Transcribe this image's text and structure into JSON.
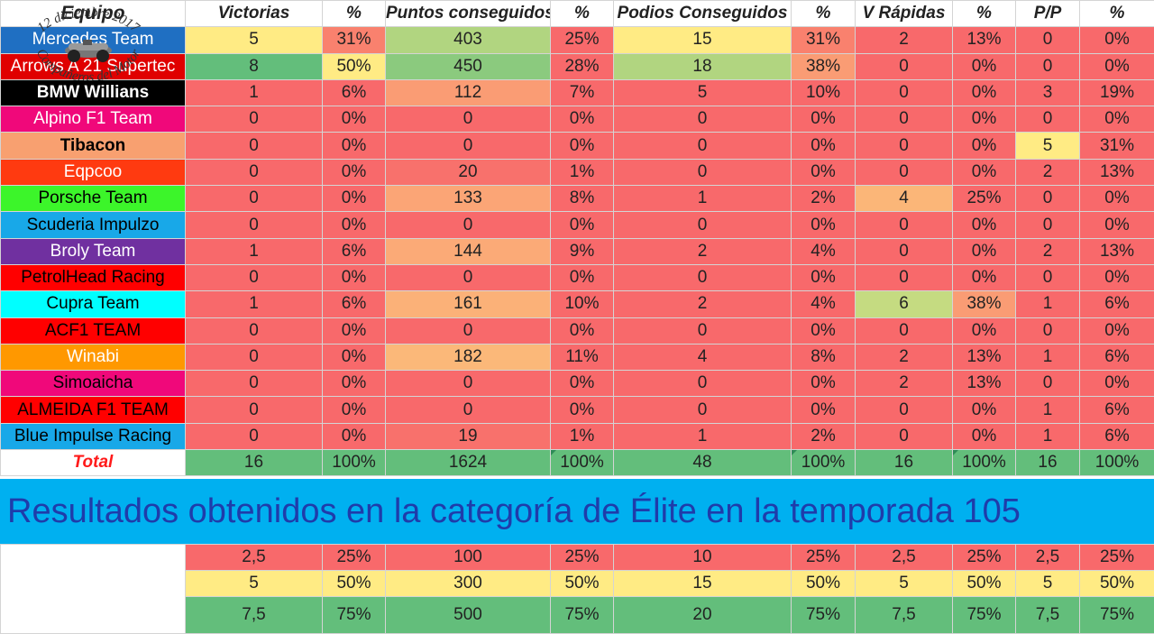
{
  "colors": {
    "red": "#f8696b",
    "yellow": "#ffeb84",
    "green": "#63be7b",
    "white": "#ffffff"
  },
  "headers": {
    "equipo": "Equipo",
    "victorias": "Victorias",
    "pct1": "%",
    "puntos": "Puntos conseguidos",
    "pct2": "%",
    "podios": "Podios Conseguidos",
    "pct3": "%",
    "vrapidas": "V Rápidas",
    "pct4": "%",
    "pp": "P/P",
    "pct5": "%"
  },
  "teams": [
    {
      "name": "Mercedes Team",
      "bg": "#1f6fc2",
      "fg": "#ffffff",
      "bold": false,
      "cells": [
        "5",
        "31%",
        "403",
        "25%",
        "15",
        "31%",
        "2",
        "13%",
        "0",
        "0%"
      ],
      "colors": [
        "#ffeb84",
        "#f9816e",
        "#b1d580",
        "#f8696b",
        "#ffeb84",
        "#f9816e",
        "#f8696b",
        "#f8696b",
        "#f8696b",
        "#f8696b"
      ]
    },
    {
      "name": "Arrows A 21 Supertec",
      "bg": "#e00000",
      "fg": "#ffffff",
      "bold": false,
      "cells": [
        "8",
        "50%",
        "450",
        "28%",
        "18",
        "38%",
        "0",
        "0%",
        "0",
        "0%"
      ],
      "colors": [
        "#63be7b",
        "#ffeb84",
        "#8bca7e",
        "#f8696b",
        "#b1d580",
        "#fa9c74",
        "#f8696b",
        "#f8696b",
        "#f8696b",
        "#f8696b"
      ]
    },
    {
      "name": "BMW Willians",
      "bg": "#000000",
      "fg": "#ffffff",
      "bold": true,
      "cells": [
        "1",
        "6%",
        "112",
        "7%",
        "5",
        "10%",
        "0",
        "0%",
        "3",
        "19%"
      ],
      "colors": [
        "#f8696b",
        "#f8696b",
        "#fa9c74",
        "#f8696b",
        "#f8696b",
        "#f8696b",
        "#f8696b",
        "#f8696b",
        "#f8696b",
        "#f8696b"
      ]
    },
    {
      "name": "Alpino F1 Team",
      "bg": "#f0087a",
      "fg": "#ffffff",
      "bold": false,
      "cells": [
        "0",
        "0%",
        "0",
        "0%",
        "0",
        "0%",
        "0",
        "0%",
        "0",
        "0%"
      ],
      "colors": [
        "#f8696b",
        "#f8696b",
        "#f8696b",
        "#f8696b",
        "#f8696b",
        "#f8696b",
        "#f8696b",
        "#f8696b",
        "#f8696b",
        "#f8696b"
      ]
    },
    {
      "name": "Tibacon",
      "bg": "#f8a070",
      "fg": "#000000",
      "bold": true,
      "cells": [
        "0",
        "0%",
        "0",
        "0%",
        "0",
        "0%",
        "0",
        "0%",
        "5",
        "31%"
      ],
      "colors": [
        "#f8696b",
        "#f8696b",
        "#f8696b",
        "#f8696b",
        "#f8696b",
        "#f8696b",
        "#f8696b",
        "#f8696b",
        "#ffeb84",
        "#f8696b"
      ]
    },
    {
      "name": "Eqpcoo",
      "bg": "#ff3a10",
      "fg": "#ffffff",
      "bold": false,
      "cells": [
        "0",
        "0%",
        "20",
        "1%",
        "0",
        "0%",
        "0",
        "0%",
        "2",
        "13%"
      ],
      "colors": [
        "#f8696b",
        "#f8696b",
        "#f8716c",
        "#f8696b",
        "#f8696b",
        "#f8696b",
        "#f8696b",
        "#f8696b",
        "#f8696b",
        "#f8696b"
      ]
    },
    {
      "name": "Porsche Team",
      "bg": "#3cf52a",
      "fg": "#000000",
      "bold": false,
      "cells": [
        "0",
        "0%",
        "133",
        "8%",
        "1",
        "2%",
        "4",
        "25%",
        "0",
        "0%"
      ],
      "colors": [
        "#f8696b",
        "#f8696b",
        "#fba576",
        "#f8696b",
        "#f8696b",
        "#f8696b",
        "#fbb678",
        "#f8696b",
        "#f8696b",
        "#f8696b"
      ]
    },
    {
      "name": "Scuderia Impulzo",
      "bg": "#18a8e8",
      "fg": "#000000",
      "bold": false,
      "cells": [
        "0",
        "0%",
        "0",
        "0%",
        "0",
        "0%",
        "0",
        "0%",
        "0",
        "0%"
      ],
      "colors": [
        "#f8696b",
        "#f8696b",
        "#f8696b",
        "#f8696b",
        "#f8696b",
        "#f8696b",
        "#f8696b",
        "#f8696b",
        "#f8696b",
        "#f8696b"
      ]
    },
    {
      "name": "Broly Team",
      "bg": "#7030a0",
      "fg": "#ffffff",
      "bold": false,
      "cells": [
        "1",
        "6%",
        "144",
        "9%",
        "2",
        "4%",
        "0",
        "0%",
        "2",
        "13%"
      ],
      "colors": [
        "#f8696b",
        "#f8696b",
        "#fbaa77",
        "#f8696b",
        "#f8696b",
        "#f8696b",
        "#f8696b",
        "#f8696b",
        "#f8696b",
        "#f8696b"
      ]
    },
    {
      "name": "PetrolHead Racing",
      "bg": "#ff0000",
      "fg": "#000000",
      "bold": false,
      "cells": [
        "0",
        "0%",
        "0",
        "0%",
        "0",
        "0%",
        "0",
        "0%",
        "0",
        "0%"
      ],
      "colors": [
        "#f8696b",
        "#f8696b",
        "#f8696b",
        "#f8696b",
        "#f8696b",
        "#f8696b",
        "#f8696b",
        "#f8696b",
        "#f8696b",
        "#f8696b"
      ]
    },
    {
      "name": "Cupra Team",
      "bg": "#00ffff",
      "fg": "#000000",
      "bold": false,
      "cells": [
        "1",
        "6%",
        "161",
        "10%",
        "2",
        "4%",
        "6",
        "38%",
        "1",
        "6%"
      ],
      "colors": [
        "#f8696b",
        "#f8696b",
        "#fbb178",
        "#f8696b",
        "#f8696b",
        "#f8696b",
        "#c5db81",
        "#fa9c74",
        "#f8696b",
        "#f8696b"
      ]
    },
    {
      "name": "ACF1 TEAM",
      "bg": "#ff0000",
      "fg": "#000000",
      "bold": false,
      "cells": [
        "0",
        "0%",
        "0",
        "0%",
        "0",
        "0%",
        "0",
        "0%",
        "0",
        "0%"
      ],
      "colors": [
        "#f8696b",
        "#f8696b",
        "#f8696b",
        "#f8696b",
        "#f8696b",
        "#f8696b",
        "#f8696b",
        "#f8696b",
        "#f8696b",
        "#f8696b"
      ]
    },
    {
      "name": "Winabi",
      "bg": "#ff9800",
      "fg": "#ffffff",
      "bold": false,
      "cells": [
        "0",
        "0%",
        "182",
        "11%",
        "4",
        "8%",
        "2",
        "13%",
        "1",
        "6%"
      ],
      "colors": [
        "#f8696b",
        "#f8696b",
        "#fbb879",
        "#f8696b",
        "#f8696b",
        "#f8696b",
        "#f8696b",
        "#f8696b",
        "#f8696b",
        "#f8696b"
      ]
    },
    {
      "name": "Simoaicha",
      "bg": "#f0087a",
      "fg": "#000000",
      "bold": false,
      "cells": [
        "0",
        "0%",
        "0",
        "0%",
        "0",
        "0%",
        "2",
        "13%",
        "0",
        "0%"
      ],
      "colors": [
        "#f8696b",
        "#f8696b",
        "#f8696b",
        "#f8696b",
        "#f8696b",
        "#f8696b",
        "#f8696b",
        "#f8696b",
        "#f8696b",
        "#f8696b"
      ]
    },
    {
      "name": "ALMEIDA F1 TEAM",
      "bg": "#ff0000",
      "fg": "#000000",
      "bold": false,
      "cells": [
        "0",
        "0%",
        "0",
        "0%",
        "0",
        "0%",
        "0",
        "0%",
        "1",
        "6%"
      ],
      "colors": [
        "#f8696b",
        "#f8696b",
        "#f8696b",
        "#f8696b",
        "#f8696b",
        "#f8696b",
        "#f8696b",
        "#f8696b",
        "#f8696b",
        "#f8696b"
      ]
    },
    {
      "name": "Blue Impulse Racing",
      "bg": "#18a8e8",
      "fg": "#000000",
      "bold": false,
      "cells": [
        "0",
        "0%",
        "19",
        "1%",
        "1",
        "2%",
        "0",
        "0%",
        "1",
        "6%"
      ],
      "colors": [
        "#f8696b",
        "#f8696b",
        "#f8716c",
        "#f8696b",
        "#f8696b",
        "#f8696b",
        "#f8696b",
        "#f8696b",
        "#f8696b",
        "#f8696b"
      ]
    }
  ],
  "total": {
    "label": "Total",
    "cells": [
      "16",
      "100%",
      "1624",
      "100%",
      "48",
      "100%",
      "16",
      "100%",
      "16",
      "100%"
    ]
  },
  "banner": "Resultados obtenidos en la categoría de Élite en la temporada 105",
  "logo": {
    "text_top": "12 diciembre 2017",
    "text_bottom": "Compañeros del Motor"
  },
  "reference": [
    {
      "color": "#f8696b",
      "cells": [
        "2,5",
        "25%",
        "100",
        "25%",
        "10",
        "25%",
        "2,5",
        "25%",
        "2,5",
        "25%"
      ]
    },
    {
      "color": "#ffeb84",
      "cells": [
        "5",
        "50%",
        "300",
        "50%",
        "15",
        "50%",
        "5",
        "50%",
        "5",
        "50%"
      ]
    },
    {
      "color": "#63be7b",
      "cells": [
        "7,5",
        "75%",
        "500",
        "75%",
        "20",
        "75%",
        "7,5",
        "75%",
        "7,5",
        "75%"
      ]
    }
  ]
}
